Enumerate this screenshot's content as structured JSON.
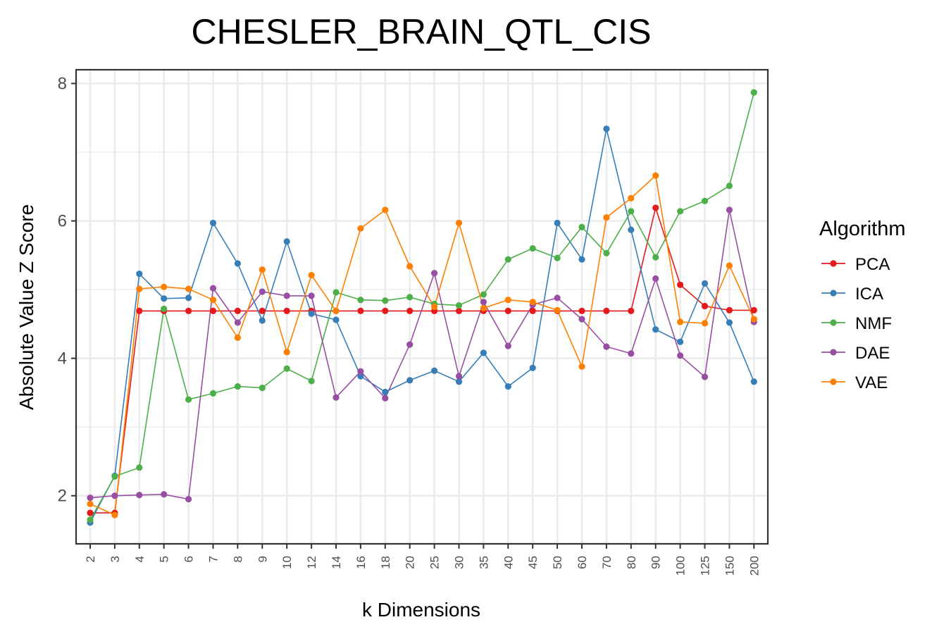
{
  "chart_data": {
    "type": "line",
    "title": "CHESLER_BRAIN_QTL_CIS",
    "xlabel": "k Dimensions",
    "ylabel": "Absolute Value Z Score",
    "ylim": [
      1.3,
      8.2
    ],
    "yticks": [
      "2",
      "4",
      "6",
      "8"
    ],
    "categories": [
      "2",
      "3",
      "4",
      "5",
      "6",
      "7",
      "8",
      "9",
      "10",
      "12",
      "14",
      "16",
      "18",
      "20",
      "25",
      "30",
      "35",
      "40",
      "45",
      "50",
      "60",
      "70",
      "80",
      "90",
      "100",
      "125",
      "150",
      "200"
    ],
    "legend_title": "Algorithm",
    "legend_position": "right",
    "series": [
      {
        "name": "PCA",
        "color": "#e41a1c",
        "values": [
          1.75,
          1.75,
          4.69,
          4.69,
          4.69,
          4.69,
          4.69,
          4.69,
          4.69,
          4.69,
          4.69,
          4.69,
          4.69,
          4.69,
          4.69,
          4.69,
          4.69,
          4.69,
          4.69,
          4.69,
          4.69,
          4.69,
          4.69,
          6.19,
          5.07,
          4.76,
          4.7,
          4.7
        ]
      },
      {
        "name": "ICA",
        "color": "#377eb8",
        "values": [
          1.61,
          2.29,
          5.23,
          4.87,
          4.88,
          5.97,
          5.38,
          4.55,
          5.7,
          4.65,
          4.56,
          3.74,
          3.51,
          3.68,
          3.82,
          3.66,
          4.08,
          3.59,
          3.86,
          5.97,
          5.44,
          7.34,
          5.87,
          4.42,
          4.24,
          5.09,
          4.52,
          3.66
        ]
      },
      {
        "name": "NMF",
        "color": "#4daf4a",
        "values": [
          1.65,
          2.28,
          2.41,
          4.72,
          3.4,
          3.49,
          3.59,
          3.57,
          3.85,
          3.67,
          4.96,
          4.85,
          4.84,
          4.89,
          4.79,
          4.77,
          4.93,
          5.44,
          5.6,
          5.46,
          5.91,
          5.53,
          6.14,
          5.47,
          6.14,
          6.29,
          6.51,
          7.87
        ]
      },
      {
        "name": "DAE",
        "color": "#984ea3",
        "values": [
          1.97,
          2.0,
          2.01,
          2.02,
          1.95,
          5.02,
          4.52,
          4.97,
          4.91,
          4.91,
          3.43,
          3.81,
          3.42,
          4.2,
          5.24,
          3.74,
          4.82,
          4.18,
          4.78,
          4.88,
          4.57,
          4.17,
          4.07,
          5.16,
          4.04,
          3.73,
          6.16,
          4.53
        ]
      },
      {
        "name": "VAE",
        "color": "#ff7f00",
        "values": [
          1.88,
          1.72,
          5.01,
          5.04,
          5.01,
          4.85,
          4.3,
          5.29,
          4.09,
          5.21,
          4.69,
          5.89,
          6.16,
          5.34,
          4.75,
          5.97,
          4.73,
          4.85,
          4.82,
          4.7,
          3.88,
          6.05,
          6.33,
          6.66,
          4.53,
          4.51,
          5.35,
          4.57
        ]
      }
    ]
  }
}
